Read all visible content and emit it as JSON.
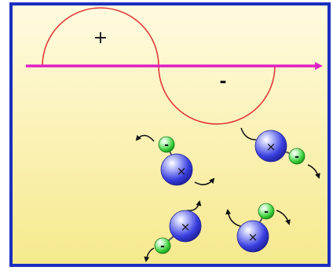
{
  "diagram": {
    "wave": {
      "positive_label": "+",
      "negative_label": "-"
    },
    "dipole_labels": {
      "positive_charge": "×",
      "negative_charge": "-"
    },
    "colors": {
      "border": "#1a2fbf",
      "background_top": "#fffbe0",
      "background_bottom": "#f6e98d",
      "axis": "#e020c8",
      "wave": "#e23a3a",
      "positive_particle": "#3a3fe0",
      "negative_particle": "#33cc33",
      "rotation_arrow": "#111111"
    },
    "icons": [
      "field-axis-arrow",
      "sine-wave",
      "dipole-molecule",
      "rotation-arrow"
    ]
  }
}
